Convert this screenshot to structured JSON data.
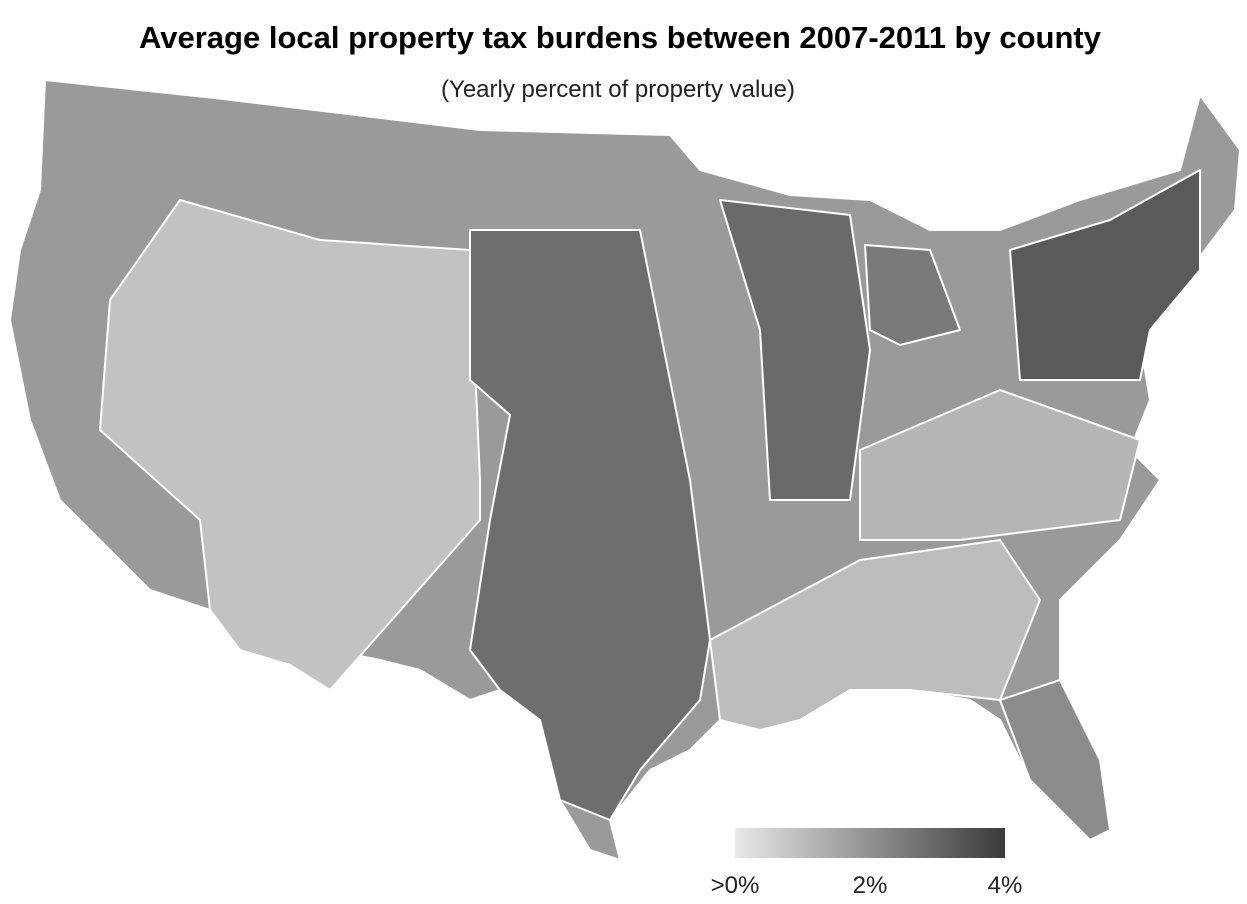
{
  "title": "Average local property tax burdens between 2007-2011 by county",
  "subtitle": "(Yearly percent of property value)",
  "legend": {
    "lim": [
      0,
      4
    ],
    "colors": [
      "#e8e8e8",
      "#3a3a3a"
    ],
    "ticks": [
      {
        "value": 0,
        "label": ">0%"
      },
      {
        "value": 2,
        "label": "2%"
      },
      {
        "value": 4,
        "label": "4%"
      }
    ]
  }
}
